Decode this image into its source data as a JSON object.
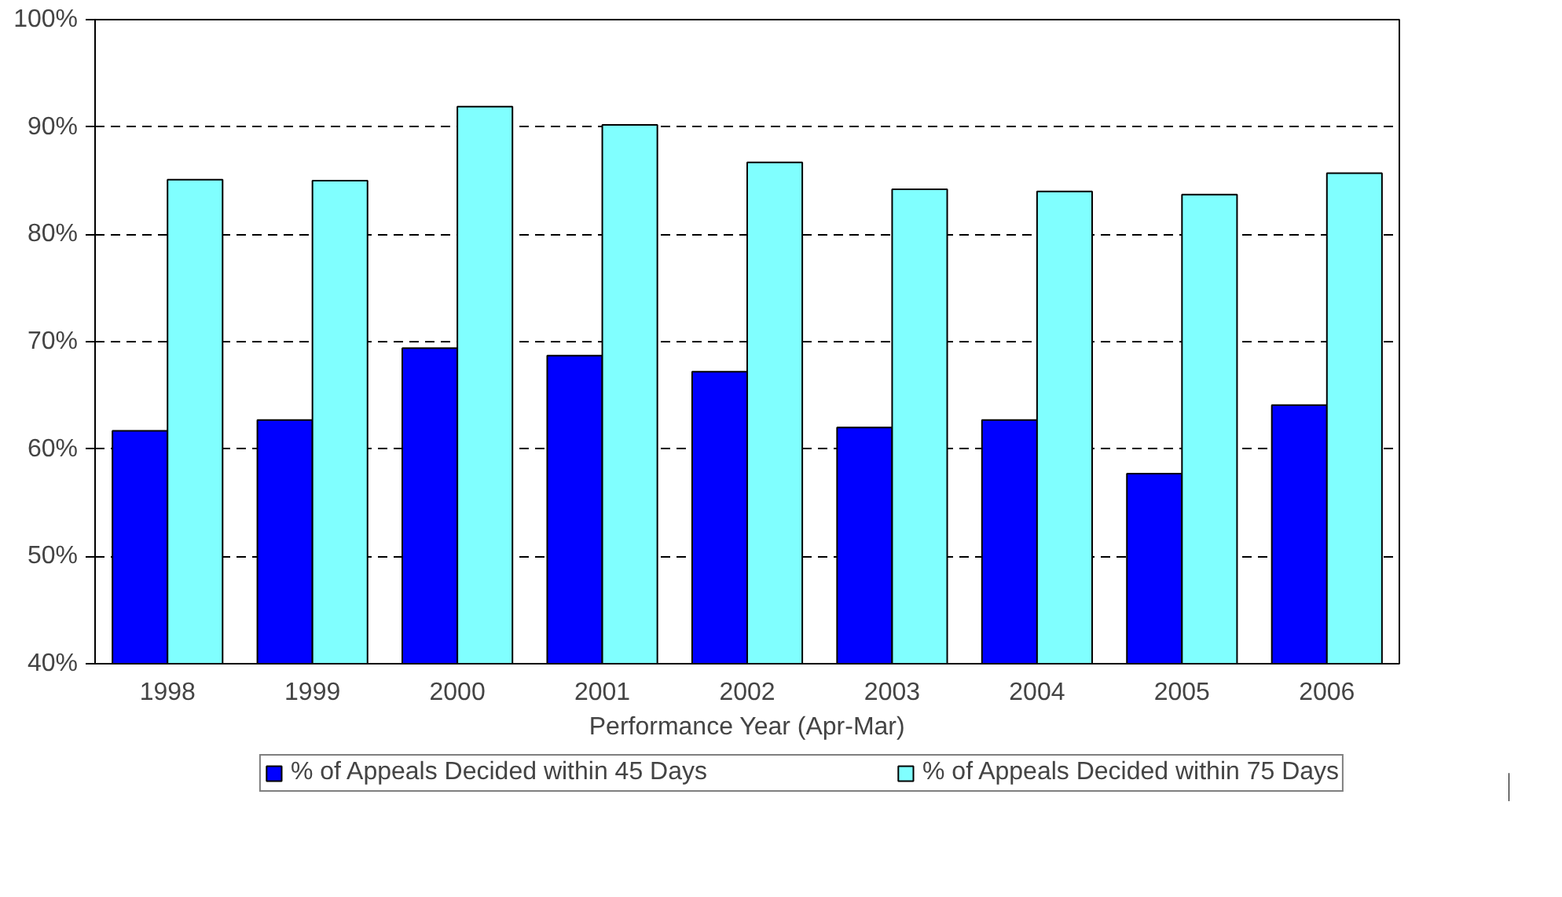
{
  "chart_data": {
    "type": "bar",
    "xlabel": "Performance Year (Apr-Mar)",
    "categories": [
      "1998",
      "1999",
      "2000",
      "2001",
      "2002",
      "2003",
      "2004",
      "2005",
      "2006"
    ],
    "series": [
      {
        "name": "% of Appeals Decided within 45 Days",
        "color": "#0000ff",
        "values": [
          61.7,
          62.7,
          69.4,
          68.7,
          67.2,
          62.0,
          62.7,
          57.7,
          64.1
        ]
      },
      {
        "name": "% of Appeals Decided within 75 Days",
        "color": "#80ffff",
        "values": [
          85.1,
          85.0,
          91.9,
          90.2,
          86.7,
          84.2,
          84.0,
          83.7,
          85.7
        ]
      }
    ],
    "ylim": [
      40,
      100
    ],
    "yticks": [
      {
        "value": 40,
        "label": "40%"
      },
      {
        "value": 50,
        "label": "50%"
      },
      {
        "value": 60,
        "label": "60%"
      },
      {
        "value": 70,
        "label": "70%"
      },
      {
        "value": 80,
        "label": "80%"
      },
      {
        "value": 90,
        "label": "90%"
      },
      {
        "value": 100,
        "label": "100%"
      }
    ],
    "grid": "y",
    "legend": "bottom"
  }
}
